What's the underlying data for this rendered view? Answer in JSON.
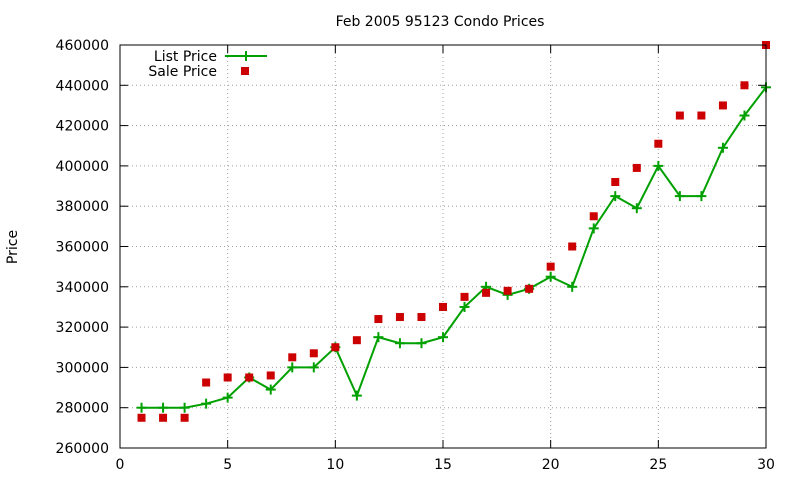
{
  "chart_data": {
    "type": "line",
    "title": "Feb 2005 95123 Condo Prices",
    "xlabel": "",
    "ylabel": "Price",
    "xlim": [
      0,
      30
    ],
    "ylim": [
      260000,
      460000
    ],
    "x_ticks": [
      0,
      5,
      10,
      15,
      20,
      25,
      30
    ],
    "y_ticks": [
      260000,
      280000,
      300000,
      320000,
      340000,
      360000,
      380000,
      400000,
      420000,
      440000,
      460000
    ],
    "grid": true,
    "legend_position": "top-left",
    "series": [
      {
        "name": "List Price",
        "style": "line-plus",
        "color": "#00a000",
        "x": [
          1,
          2,
          3,
          4,
          5,
          6,
          7,
          8,
          9,
          10,
          11,
          12,
          13,
          14,
          15,
          16,
          17,
          18,
          19,
          20,
          21,
          22,
          23,
          24,
          25,
          26,
          27,
          28,
          29,
          30
        ],
        "values": [
          280000,
          280000,
          280000,
          282000,
          285000,
          295000,
          289000,
          300000,
          300000,
          310000,
          286000,
          315000,
          312000,
          312000,
          315000,
          330000,
          340000,
          336000,
          339000,
          345000,
          340000,
          369000,
          385000,
          379000,
          400000,
          385000,
          385000,
          409000,
          425000,
          439000
        ]
      },
      {
        "name": "Sale Price",
        "style": "square",
        "color": "#cc0000",
        "x": [
          1,
          2,
          3,
          4,
          5,
          6,
          7,
          8,
          9,
          10,
          11,
          12,
          13,
          14,
          15,
          16,
          17,
          18,
          19,
          20,
          21,
          22,
          23,
          24,
          25,
          26,
          27,
          28,
          29,
          30
        ],
        "values": [
          275000,
          275000,
          275000,
          292500,
          295000,
          295000,
          296000,
          305000,
          307000,
          310000,
          313500,
          324000,
          325000,
          325000,
          330000,
          335000,
          337000,
          338000,
          339000,
          350000,
          360000,
          375000,
          392000,
          399000,
          411000,
          425000,
          425000,
          430000,
          440000,
          460000
        ]
      }
    ]
  }
}
